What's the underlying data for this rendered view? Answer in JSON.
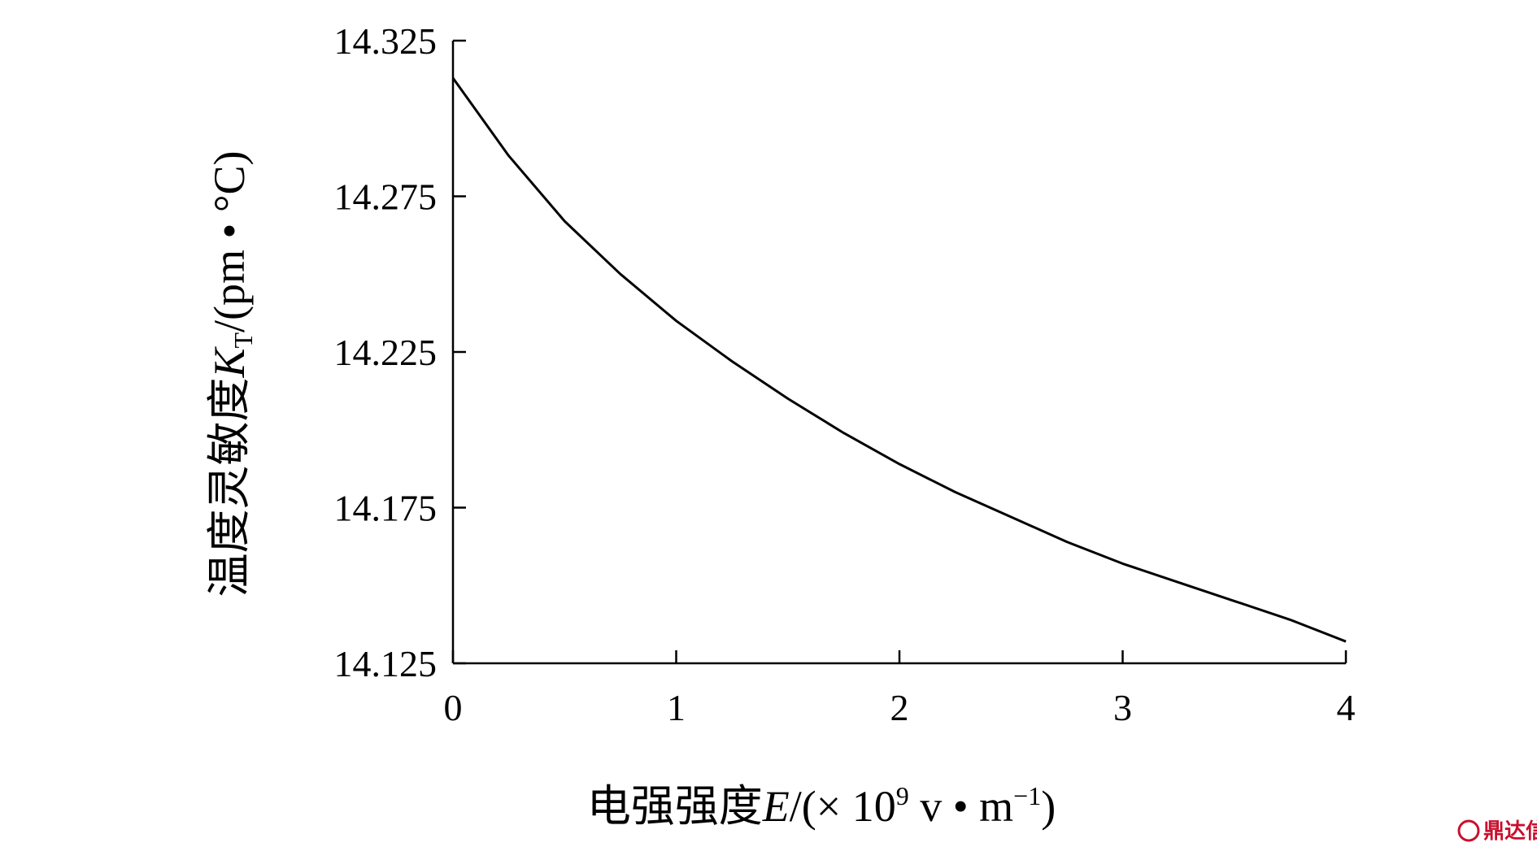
{
  "chart_data": {
    "type": "line",
    "xlabel": {
      "prefix": "电强强度",
      "symbol": "E",
      "unit_open": "/(× 10",
      "unit_exp": "9",
      "unit_mid": " v • m",
      "unit_exp2": "−1",
      "unit_close": ")"
    },
    "ylabel": {
      "prefix": "温度灵敏度",
      "symbol": "K",
      "subscript": "T",
      "unit": "/(pm • °C)"
    },
    "xlim": [
      0,
      4
    ],
    "ylim": [
      14.125,
      14.325
    ],
    "x_ticks": [
      0,
      1,
      2,
      3,
      4
    ],
    "x_tick_labels": [
      "0",
      "1",
      "2",
      "3",
      "4"
    ],
    "y_ticks": [
      14.125,
      14.175,
      14.225,
      14.275,
      14.325
    ],
    "y_tick_labels": [
      "14.125",
      "14.175",
      "14.225",
      "14.275",
      "14.325"
    ],
    "grid": false,
    "series": [
      {
        "color": "#000000",
        "x": [
          0,
          0.25,
          0.5,
          0.75,
          1.0,
          1.25,
          1.5,
          1.75,
          2.0,
          2.25,
          2.5,
          2.75,
          3.0,
          3.25,
          3.5,
          3.75,
          4.0
        ],
        "y": [
          14.313,
          14.288,
          14.267,
          14.25,
          14.235,
          14.222,
          14.21,
          14.199,
          14.189,
          14.18,
          14.172,
          14.164,
          14.157,
          14.151,
          14.145,
          14.139,
          14.132
        ]
      }
    ]
  },
  "watermark": {
    "text": "鼎达信",
    "color": "#c8102e"
  }
}
